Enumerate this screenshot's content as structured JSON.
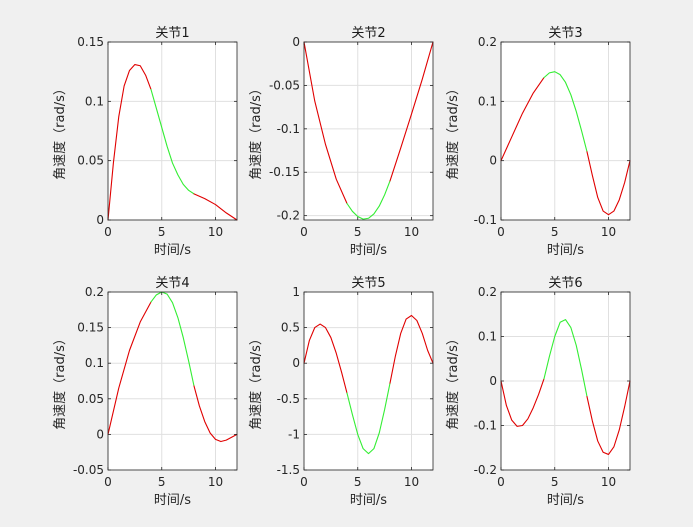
{
  "figure": {
    "background": "#f0f0f0",
    "axes_background": "#ffffff",
    "grid": true,
    "colors": {
      "red_segment": "#e00000",
      "green_segment": "#33ee33",
      "grid": "#e0e0e0",
      "axis": "#262626"
    }
  },
  "chart_data": [
    {
      "type": "line",
      "title": "关节1",
      "xlabel": "时间/s",
      "ylabel": "角速度（rad/s）",
      "xlim": [
        0,
        12
      ],
      "ylim": [
        0,
        0.15
      ],
      "xticks": [
        0,
        5,
        10
      ],
      "xtick_labels": [
        "0",
        "5",
        "10"
      ],
      "yticks": [
        0,
        0.05,
        0.1,
        0.15
      ],
      "ytick_labels": [
        "0",
        "0.05",
        "0.1",
        "0.15"
      ],
      "series": [
        {
          "color": "#e00000",
          "x": [
            0,
            0.5,
            1,
            1.5,
            2,
            2.5,
            3,
            3.5,
            4
          ],
          "y": [
            0,
            0.048,
            0.087,
            0.113,
            0.126,
            0.131,
            0.13,
            0.122,
            0.11
          ]
        },
        {
          "color": "#33ee33",
          "x": [
            4,
            4.5,
            5,
            5.5,
            6,
            6.5,
            7,
            7.5,
            8
          ],
          "y": [
            0.11,
            0.094,
            0.078,
            0.062,
            0.048,
            0.038,
            0.03,
            0.025,
            0.022
          ]
        },
        {
          "color": "#e00000",
          "x": [
            8,
            9,
            10,
            11,
            12
          ],
          "y": [
            0.022,
            0.018,
            0.013,
            0.006,
            0
          ]
        }
      ]
    },
    {
      "type": "line",
      "title": "关节2",
      "xlabel": "时间/s",
      "ylabel": "角速度（rad/s）",
      "xlim": [
        0,
        12
      ],
      "ylim": [
        -0.205,
        0
      ],
      "xticks": [
        0,
        5,
        10
      ],
      "xtick_labels": [
        "0",
        "5",
        "10"
      ],
      "yticks": [
        0,
        -0.05,
        -0.1,
        -0.15,
        -0.2
      ],
      "ytick_labels": [
        "0",
        "-0.05",
        "-0.1",
        "-0.15",
        "-0.2"
      ],
      "series": [
        {
          "color": "#e00000",
          "x": [
            0,
            1,
            2,
            3,
            4
          ],
          "y": [
            0,
            -0.068,
            -0.118,
            -0.158,
            -0.186
          ]
        },
        {
          "color": "#33ee33",
          "x": [
            4,
            4.5,
            5,
            5.5,
            6,
            6.5,
            7,
            7.5,
            8
          ],
          "y": [
            -0.186,
            -0.195,
            -0.201,
            -0.204,
            -0.203,
            -0.198,
            -0.189,
            -0.176,
            -0.16
          ]
        },
        {
          "color": "#e00000",
          "x": [
            8,
            9,
            10,
            11,
            12
          ],
          "y": [
            -0.16,
            -0.122,
            -0.083,
            -0.043,
            0
          ]
        }
      ]
    },
    {
      "type": "line",
      "title": "关节3",
      "xlabel": "时间/s",
      "ylabel": "角速度（rad/s）",
      "xlim": [
        0,
        12
      ],
      "ylim": [
        -0.1,
        0.2
      ],
      "xticks": [
        0,
        5,
        10
      ],
      "xtick_labels": [
        "0",
        "5",
        "10"
      ],
      "yticks": [
        -0.1,
        0,
        0.1,
        0.2
      ],
      "ytick_labels": [
        "-0.1",
        "0",
        "0.1",
        "0.2"
      ],
      "series": [
        {
          "color": "#e00000",
          "x": [
            0,
            1,
            2,
            3,
            4
          ],
          "y": [
            0,
            0.04,
            0.08,
            0.114,
            0.14
          ]
        },
        {
          "color": "#33ee33",
          "x": [
            4,
            4.5,
            5,
            5.5,
            6,
            6.5,
            7,
            7.5,
            8
          ],
          "y": [
            0.14,
            0.148,
            0.15,
            0.145,
            0.132,
            0.111,
            0.083,
            0.05,
            0.015
          ]
        },
        {
          "color": "#e00000",
          "x": [
            8,
            8.5,
            9,
            9.5,
            10,
            10.5,
            11,
            11.5,
            12
          ],
          "y": [
            0.015,
            -0.025,
            -0.062,
            -0.085,
            -0.091,
            -0.085,
            -0.066,
            -0.037,
            0
          ]
        }
      ]
    },
    {
      "type": "line",
      "title": "关节4",
      "xlabel": "时间/s",
      "ylabel": "角速度（rad/s）",
      "xlim": [
        0,
        12
      ],
      "ylim": [
        -0.05,
        0.2
      ],
      "xticks": [
        0,
        5,
        10
      ],
      "xtick_labels": [
        "0",
        "5",
        "10"
      ],
      "yticks": [
        -0.05,
        0,
        0.05,
        0.1,
        0.15,
        0.2
      ],
      "ytick_labels": [
        "-0.05",
        "0",
        "0.05",
        "0.1",
        "0.15",
        "0.2"
      ],
      "series": [
        {
          "color": "#e00000",
          "x": [
            0,
            1,
            2,
            3,
            4
          ],
          "y": [
            0,
            0.065,
            0.118,
            0.158,
            0.186
          ]
        },
        {
          "color": "#33ee33",
          "x": [
            4,
            4.5,
            5,
            5.5,
            6,
            6.5,
            7,
            7.5,
            8
          ],
          "y": [
            0.186,
            0.196,
            0.2,
            0.197,
            0.185,
            0.164,
            0.136,
            0.103,
            0.068
          ]
        },
        {
          "color": "#e00000",
          "x": [
            8,
            8.5,
            9,
            9.5,
            10,
            10.5,
            11,
            11.5,
            12
          ],
          "y": [
            0.068,
            0.04,
            0.018,
            0.002,
            -0.007,
            -0.01,
            -0.008,
            -0.004,
            0
          ]
        }
      ]
    },
    {
      "type": "line",
      "title": "关节5",
      "xlabel": "时间/s",
      "ylabel": "角速度（rad/s）",
      "xlim": [
        0,
        12
      ],
      "ylim": [
        -1.5,
        1
      ],
      "xticks": [
        0,
        5,
        10
      ],
      "xtick_labels": [
        "0",
        "5",
        "10"
      ],
      "yticks": [
        -1.5,
        -1,
        -0.5,
        0,
        0.5,
        1
      ],
      "ytick_labels": [
        "-1.5",
        "-1",
        "-0.5",
        "0",
        "0.5",
        "1"
      ],
      "series": [
        {
          "color": "#e00000",
          "x": [
            0,
            0.5,
            1,
            1.5,
            2,
            2.5,
            3,
            3.5,
            4
          ],
          "y": [
            0,
            0.32,
            0.5,
            0.55,
            0.5,
            0.36,
            0.14,
            -0.13,
            -0.42
          ]
        },
        {
          "color": "#33ee33",
          "x": [
            4,
            4.5,
            5,
            5.5,
            6,
            6.5,
            7,
            7.5,
            8
          ],
          "y": [
            -0.42,
            -0.72,
            -1.0,
            -1.2,
            -1.27,
            -1.2,
            -0.98,
            -0.65,
            -0.28
          ]
        },
        {
          "color": "#e00000",
          "x": [
            8,
            8.5,
            9,
            9.5,
            10,
            10.5,
            11,
            11.5,
            12
          ],
          "y": [
            -0.28,
            0.1,
            0.42,
            0.62,
            0.67,
            0.6,
            0.42,
            0.18,
            0
          ]
        }
      ]
    },
    {
      "type": "line",
      "title": "关节6",
      "xlabel": "时间/s",
      "ylabel": "角速度（rad/s）",
      "xlim": [
        0,
        12
      ],
      "ylim": [
        -0.2,
        0.2
      ],
      "xticks": [
        0,
        5,
        10
      ],
      "xtick_labels": [
        "0",
        "5",
        "10"
      ],
      "yticks": [
        -0.2,
        -0.1,
        0,
        0.1,
        0.2
      ],
      "ytick_labels": [
        "-0.2",
        "-0.1",
        "0",
        "0.1",
        "0.2"
      ],
      "series": [
        {
          "color": "#e00000",
          "x": [
            0,
            0.5,
            1,
            1.5,
            2,
            2.5,
            3,
            3.5,
            4
          ],
          "y": [
            0,
            -0.055,
            -0.088,
            -0.102,
            -0.1,
            -0.085,
            -0.06,
            -0.03,
            0.005
          ]
        },
        {
          "color": "#33ee33",
          "x": [
            4,
            4.5,
            5,
            5.5,
            6,
            6.5,
            7,
            7.5,
            8
          ],
          "y": [
            0.005,
            0.055,
            0.1,
            0.132,
            0.138,
            0.12,
            0.08,
            0.025,
            -0.035
          ]
        },
        {
          "color": "#e00000",
          "x": [
            8,
            8.5,
            9,
            9.5,
            10,
            10.5,
            11,
            11.5,
            12
          ],
          "y": [
            -0.035,
            -0.09,
            -0.135,
            -0.16,
            -0.165,
            -0.148,
            -0.11,
            -0.058,
            0
          ]
        }
      ]
    }
  ]
}
